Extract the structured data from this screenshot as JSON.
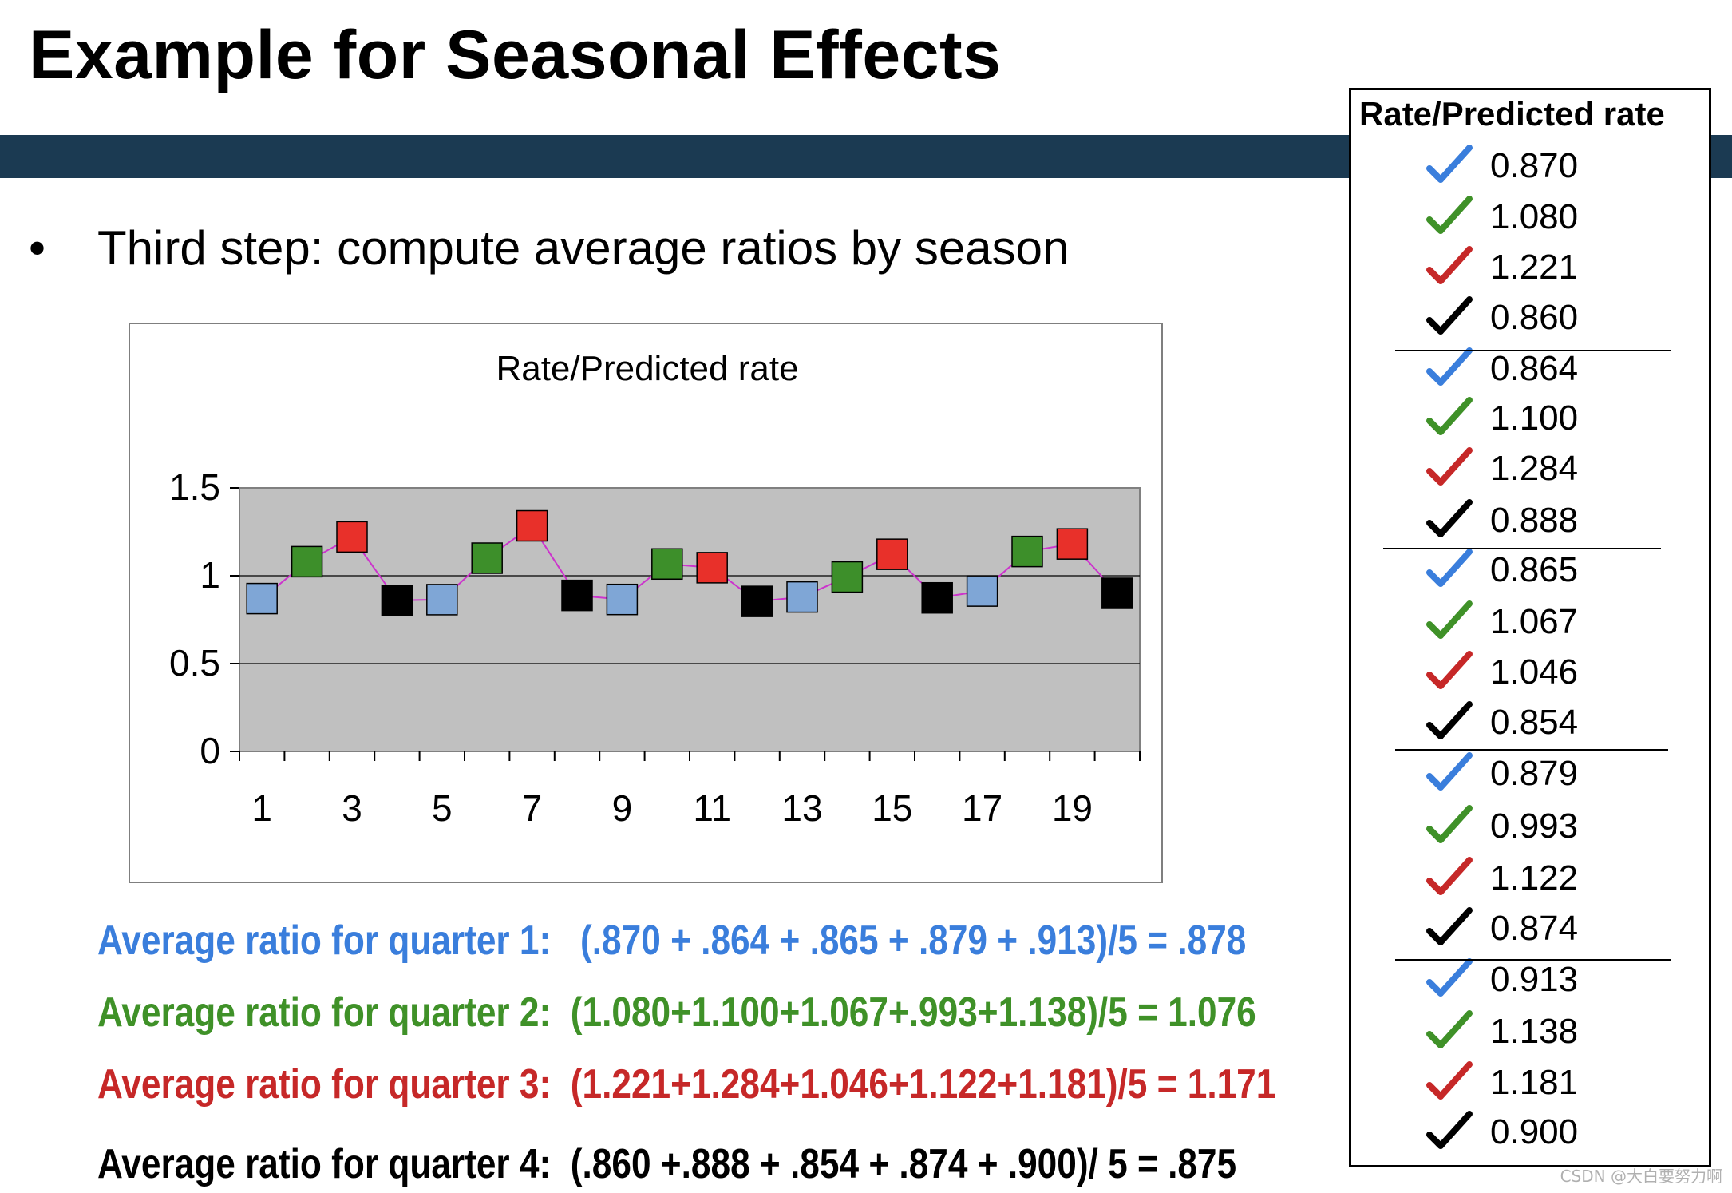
{
  "slide": {
    "title": "Example for Seasonal Effects",
    "bullet_symbol": "•",
    "bullet_text": "Third step: compute average ratios by season",
    "watermark": "CSDN @大白要努力啊"
  },
  "colors": {
    "header_bar": "#1b3a52",
    "q1": "#3a7edc",
    "q2": "#3f9128",
    "q3": "#c62828",
    "q4": "#000000",
    "marker_q1": "#7fa6d6",
    "marker_q2": "#3d8f2a",
    "marker_q3": "#e8302a",
    "marker_q4": "#000000",
    "line": "#cc33cc",
    "plot_bg": "#c0c0c0"
  },
  "chart_data": {
    "type": "line",
    "title": "Rate/Predicted rate",
    "xlabel": "",
    "ylabel": "",
    "x": [
      1,
      2,
      3,
      4,
      5,
      6,
      7,
      8,
      9,
      10,
      11,
      12,
      13,
      14,
      15,
      16,
      17,
      18,
      19,
      20
    ],
    "x_tick_labels": [
      "1",
      "3",
      "5",
      "7",
      "9",
      "11",
      "13",
      "15",
      "17",
      "19"
    ],
    "x_tick_values": [
      1,
      3,
      5,
      7,
      9,
      11,
      13,
      15,
      17,
      19
    ],
    "y_ticks": [
      0,
      0.5,
      1,
      1.5
    ],
    "y_tick_labels": [
      "0",
      "0.5",
      "1",
      "1.5"
    ],
    "ylim": [
      0,
      1.5
    ],
    "grid": true,
    "legend": "none",
    "series": [
      {
        "name": "Rate/Predicted rate",
        "values": [
          0.87,
          1.08,
          1.221,
          0.86,
          0.864,
          1.1,
          1.284,
          0.888,
          0.865,
          1.067,
          1.046,
          0.854,
          0.879,
          0.993,
          1.122,
          0.874,
          0.913,
          1.138,
          1.181,
          0.9
        ],
        "marker_quarters": [
          1,
          2,
          3,
          4,
          1,
          2,
          3,
          4,
          1,
          2,
          3,
          4,
          1,
          2,
          3,
          4,
          1,
          2,
          3,
          4
        ]
      }
    ]
  },
  "averages": [
    {
      "label": "Average ratio for quarter 1:",
      "formula": "(.870 + .864 + .865 + .879 + .913)/5 = .878"
    },
    {
      "label": "Average ratio for quarter 2:",
      "formula": "(1.080+1.100+1.067+.993+1.138)/5 = 1.076"
    },
    {
      "label": "Average ratio for quarter 3:",
      "formula": "(1.221+1.284+1.046+1.122+1.181)/5 = 1.171"
    },
    {
      "label": "Average ratio for quarter 4:",
      "formula": "(.860 +.888 + .854 + .874 + .900)/ 5 =  .875"
    }
  ],
  "ratio_table": {
    "header": "Rate/Predicted rate",
    "check_symbol": "checkmark-icon",
    "values": [
      "0.870",
      "1.080",
      "1.221",
      "0.860",
      "0.864",
      "1.100",
      "1.284",
      "0.888",
      "0.865",
      "1.067",
      "1.046",
      "0.854",
      "0.879",
      "0.993",
      "1.122",
      "0.874",
      "0.913",
      "1.138",
      "1.181",
      "0.900"
    ],
    "quarters": [
      1,
      2,
      3,
      4,
      1,
      2,
      3,
      4,
      1,
      2,
      3,
      4,
      1,
      2,
      3,
      4,
      1,
      2,
      3,
      4
    ]
  }
}
